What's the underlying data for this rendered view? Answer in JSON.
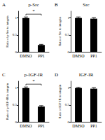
{
  "chart_data": [
    {
      "type": "bar",
      "panel": "A",
      "title": "p-Src",
      "y_label": "Ratio of p-Src to integrin",
      "categories": [
        "DMSO",
        "PP1"
      ],
      "values": [
        1.0,
        0.2
      ],
      "errors": [
        0.03,
        0.02
      ],
      "color": "#000000",
      "ylim": [
        0,
        1.2
      ],
      "yticks": [
        0,
        0.5,
        1
      ],
      "grid": false,
      "annotations": [
        {
          "text": "*"
        }
      ]
    },
    {
      "type": "bar",
      "panel": "B",
      "title": "Src",
      "y_label": "Ratio of Src to integrin",
      "categories": [
        "DMSO",
        "PP1"
      ],
      "values": [
        1.0,
        0.98
      ],
      "errors": [
        0.03,
        0.03
      ],
      "color": "#000000",
      "ylim": [
        0,
        1.2
      ],
      "yticks": [
        0,
        0.5,
        1
      ],
      "grid": false,
      "annotations": []
    },
    {
      "type": "bar",
      "panel": "C",
      "title": "p-IGF-IR",
      "y_label": "Ratio of p-IGF-IR to integrin",
      "categories": [
        "DMSO",
        "PP1"
      ],
      "values": [
        1.0,
        0.45
      ],
      "errors": [
        0.03,
        0.03
      ],
      "color": "#000000",
      "ylim": [
        0,
        1.2
      ],
      "yticks": [
        0,
        0.5,
        1
      ],
      "grid": false,
      "annotations": [
        {
          "text": "*"
        }
      ]
    },
    {
      "type": "bar",
      "panel": "D",
      "title": "IGF-IR",
      "y_label": "Ratio of IGF-IR to integrin",
      "categories": [
        "DMSO",
        "PP1"
      ],
      "values": [
        1.0,
        0.98
      ],
      "errors": [
        0.02,
        0.03
      ],
      "color": "#000000",
      "ylim": [
        0,
        1.2
      ],
      "yticks": [
        0,
        0.5,
        1
      ],
      "grid": false,
      "annotations": []
    }
  ]
}
